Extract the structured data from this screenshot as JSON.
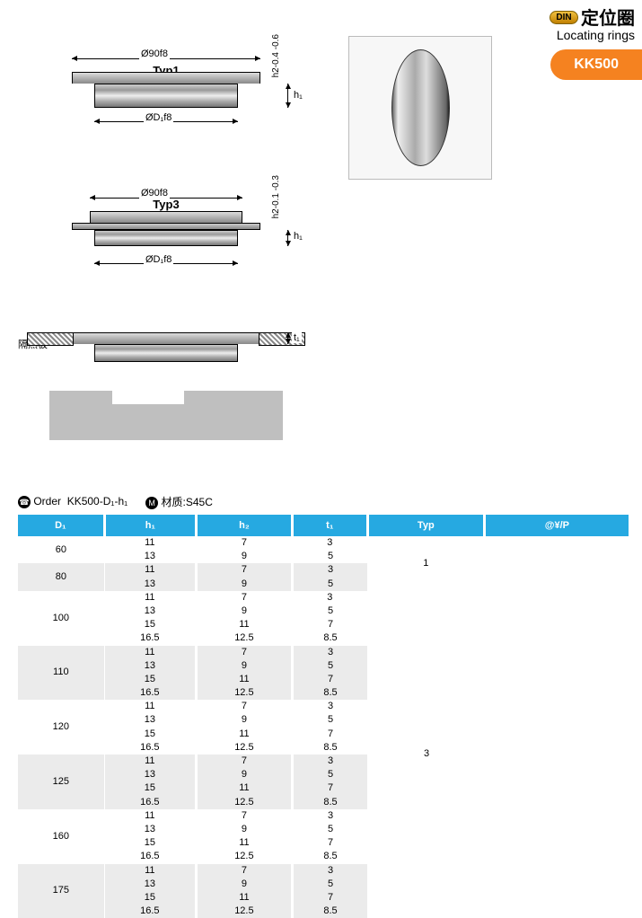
{
  "header": {
    "din": "DIN",
    "title_cn": "定位圈",
    "title_en": "Locating rings",
    "product_code": "KK500"
  },
  "diagrams": {
    "outer_dia": "Ø90f8",
    "inner_dia": "ØD₁f8",
    "h1": "h₁",
    "h2_typ1": "h2-0.4 -0.6",
    "h2_typ3": "h2-0.1 -0.3",
    "t1": "t₁",
    "typ1": "Typ1",
    "typ3": "Typ3",
    "insulation": "隔热板"
  },
  "order": {
    "label_order": "Order",
    "format": "KK500-D₁-h₁",
    "material_label": "材质:S45C",
    "columns": [
      "D₁",
      "h₁",
      "h₂",
      "t₁",
      "Typ",
      "@¥/P"
    ],
    "groups": [
      {
        "d1": "60",
        "rows": [
          [
            "11",
            "7",
            "3"
          ],
          [
            "13",
            "9",
            "5"
          ]
        ],
        "typ": "1",
        "alt": false
      },
      {
        "d1": "80",
        "rows": [
          [
            "11",
            "7",
            "3"
          ],
          [
            "13",
            "9",
            "5"
          ]
        ],
        "typ": "1",
        "alt": true
      },
      {
        "d1": "100",
        "rows": [
          [
            "11",
            "7",
            "3"
          ],
          [
            "13",
            "9",
            "5"
          ],
          [
            "15",
            "11",
            "7"
          ],
          [
            "16.5",
            "12.5",
            "8.5"
          ]
        ],
        "typ": "3",
        "alt": false
      },
      {
        "d1": "110",
        "rows": [
          [
            "11",
            "7",
            "3"
          ],
          [
            "13",
            "9",
            "5"
          ],
          [
            "15",
            "11",
            "7"
          ],
          [
            "16.5",
            "12.5",
            "8.5"
          ]
        ],
        "typ": "3",
        "alt": true
      },
      {
        "d1": "120",
        "rows": [
          [
            "11",
            "7",
            "3"
          ],
          [
            "13",
            "9",
            "5"
          ],
          [
            "15",
            "11",
            "7"
          ],
          [
            "16.5",
            "12.5",
            "8.5"
          ]
        ],
        "typ": "3",
        "alt": false
      },
      {
        "d1": "125",
        "rows": [
          [
            "11",
            "7",
            "3"
          ],
          [
            "13",
            "9",
            "5"
          ],
          [
            "15",
            "11",
            "7"
          ],
          [
            "16.5",
            "12.5",
            "8.5"
          ]
        ],
        "typ": "3",
        "alt": true
      },
      {
        "d1": "160",
        "rows": [
          [
            "11",
            "7",
            "3"
          ],
          [
            "13",
            "9",
            "5"
          ],
          [
            "15",
            "11",
            "7"
          ],
          [
            "16.5",
            "12.5",
            "8.5"
          ]
        ],
        "typ": "3",
        "alt": false
      },
      {
        "d1": "175",
        "rows": [
          [
            "11",
            "7",
            "3"
          ],
          [
            "13",
            "9",
            "5"
          ],
          [
            "15",
            "11",
            "7"
          ],
          [
            "16.5",
            "12.5",
            "8.5"
          ]
        ],
        "typ": "3",
        "alt": true
      }
    ]
  },
  "colors": {
    "header_bg": "#26a9e1",
    "tab_bg": "#f58220",
    "alt_row": "#ebebeb"
  }
}
